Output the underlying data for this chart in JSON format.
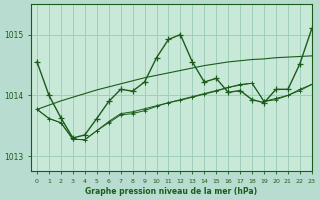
{
  "title": "Graphe pression niveau de la mer (hPa)",
  "bg_color": "#b8ddd0",
  "plot_bg": "#c8e8d8",
  "grid_color": "#9fcfbb",
  "line_color": "#1a5c1a",
  "xlim": [
    -0.5,
    23
  ],
  "ylim": [
    1012.75,
    1015.5
  ],
  "yticks": [
    1013,
    1014,
    1015
  ],
  "xticks": [
    0,
    1,
    2,
    3,
    4,
    5,
    6,
    7,
    8,
    9,
    10,
    11,
    12,
    13,
    14,
    15,
    16,
    17,
    18,
    19,
    20,
    21,
    22,
    23
  ],
  "series0": [
    1014.55,
    1014.0,
    1013.63,
    1013.3,
    1013.35,
    1013.62,
    1013.9,
    1014.1,
    1014.07,
    1014.22,
    1014.62,
    1014.92,
    1015.0,
    1014.55,
    1014.22,
    1014.28,
    1014.05,
    1014.08,
    1013.93,
    1013.88,
    1014.1,
    1014.1,
    1014.52,
    1015.1
  ],
  "series1": [
    1013.77,
    1013.62,
    1013.55,
    1013.28,
    1013.27,
    1013.42,
    1013.55,
    1013.68,
    1013.7,
    1013.75,
    1013.82,
    1013.88,
    1013.93,
    1013.98,
    1014.03,
    1014.08,
    1014.13,
    1014.18,
    1014.2,
    1013.9,
    1013.95,
    1014.0,
    1014.1,
    1014.18
  ],
  "series2": [
    1013.77,
    1013.62,
    1013.55,
    1013.28,
    1013.27,
    1013.42,
    1013.57,
    1013.7,
    1013.73,
    1013.78,
    1013.83,
    1013.88,
    1013.92,
    1013.97,
    1014.02,
    1014.07,
    1014.13,
    1014.17,
    1014.2,
    1013.9,
    1013.93,
    1014.0,
    1014.08,
    1014.18
  ],
  "series_linear": [
    1013.77,
    1013.84,
    1013.91,
    1013.97,
    1014.03,
    1014.09,
    1014.14,
    1014.19,
    1014.24,
    1014.29,
    1014.33,
    1014.37,
    1014.41,
    1014.45,
    1014.49,
    1014.52,
    1014.55,
    1014.57,
    1014.59,
    1014.6,
    1014.62,
    1014.63,
    1014.64,
    1014.65
  ]
}
